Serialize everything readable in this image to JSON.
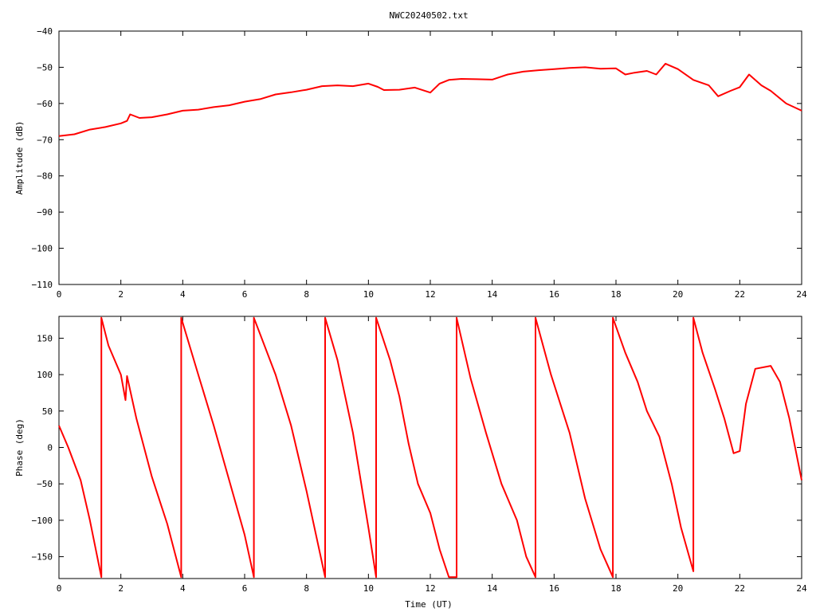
{
  "title": "NWC20240502.txt",
  "colors": {
    "series": "#ff0000",
    "frame": "#000000",
    "background": "#ffffff"
  },
  "chart_data": [
    {
      "type": "line",
      "title": "NWC20240502.txt",
      "xlabel": "",
      "ylabel": "Amplitude (dB)",
      "xlim": [
        0,
        24
      ],
      "ylim": [
        -110,
        -40
      ],
      "xticks": [
        0,
        2,
        4,
        6,
        8,
        10,
        12,
        14,
        16,
        18,
        20,
        22,
        24
      ],
      "yticks": [
        -40,
        -50,
        -60,
        -70,
        -80,
        -90,
        -100,
        -110
      ],
      "grid": false,
      "series": [
        {
          "x": [
            0,
            0.5,
            1,
            1.5,
            2,
            2.2,
            2.3,
            2.6,
            3,
            3.5,
            4,
            4.5,
            5,
            5.5,
            6,
            6.5,
            7,
            7.5,
            8,
            8.5,
            9,
            9.5,
            10,
            10.3,
            10.5,
            11,
            11.5,
            12,
            12.3,
            12.6,
            13,
            13.5,
            14,
            14.5,
            15,
            15.5,
            16,
            16.5,
            17,
            17.5,
            18,
            18.3,
            18.6,
            19,
            19.3,
            19.6,
            20,
            20.5,
            21,
            21.3,
            21.7,
            22,
            22.3,
            22.7,
            23,
            23.5,
            24
          ],
          "values": [
            -69,
            -68.5,
            -67.2,
            -66.5,
            -65.5,
            -64.8,
            -63,
            -64,
            -63.8,
            -63,
            -62,
            -61.7,
            -61,
            -60.5,
            -59.5,
            -58.8,
            -57.5,
            -56.9,
            -56.2,
            -55.2,
            -55,
            -55.2,
            -54.5,
            -55.4,
            -56.3,
            -56.2,
            -55.6,
            -57,
            -54.5,
            -53.5,
            -53.2,
            -53.3,
            -53.4,
            -52,
            -51.2,
            -50.8,
            -50.5,
            -50.2,
            -50,
            -50.4,
            -50.3,
            -52,
            -51.5,
            -51,
            -52,
            -49,
            -50.5,
            -53.5,
            -55,
            -58,
            -56.5,
            -55.5,
            -52,
            -55,
            -56.5,
            -60,
            -62
          ]
        }
      ]
    },
    {
      "type": "line",
      "title": "",
      "xlabel": "Time (UT)",
      "ylabel": "Phase (deg)",
      "xlim": [
        0,
        24
      ],
      "ylim": [
        -180,
        180
      ],
      "xticks": [
        0,
        2,
        4,
        6,
        8,
        10,
        12,
        14,
        16,
        18,
        20,
        22,
        24
      ],
      "yticks": [
        150,
        100,
        50,
        0,
        -50,
        -100,
        -150
      ],
      "grid": false,
      "series": [
        {
          "x": [
            0,
            0.3,
            0.7,
            1,
            1.37,
            1.37,
            1.6,
            2,
            2.15,
            2.2,
            2.5,
            3,
            3.5,
            3.95,
            3.95,
            4.5,
            5,
            5.5,
            6,
            6.3,
            6.3,
            7,
            7.5,
            8,
            8.6,
            8.6,
            9,
            9.5,
            10,
            10.25,
            10.25,
            10.7,
            11,
            11.3,
            11.6,
            12,
            12.3,
            12.6,
            12.85,
            12.85,
            13.3,
            13.8,
            14.3,
            14.8,
            15.1,
            15.4,
            15.4,
            15.9,
            16.5,
            17,
            17.5,
            17.9,
            17.9,
            18.3,
            18.7,
            19,
            19.4,
            19.8,
            20.1,
            20.5,
            20.5,
            20.8,
            21.2,
            21.5,
            21.8,
            22,
            22.2,
            22.5,
            23,
            23.3,
            23.6,
            24
          ],
          "values": [
            30,
            0,
            -45,
            -100,
            -178,
            178,
            140,
            100,
            65,
            98,
            40,
            -40,
            -105,
            -178,
            178,
            100,
            30,
            -45,
            -120,
            -178,
            178,
            100,
            30,
            -60,
            -178,
            178,
            120,
            20,
            -110,
            -178,
            178,
            120,
            70,
            5,
            -50,
            -90,
            -140,
            -178,
            -178,
            178,
            95,
            20,
            -50,
            -100,
            -150,
            -178,
            178,
            100,
            20,
            -70,
            -140,
            -178,
            178,
            130,
            90,
            50,
            15,
            -50,
            -110,
            -170,
            178,
            130,
            80,
            40,
            -8,
            -5,
            60,
            108,
            112,
            90,
            40,
            -45
          ]
        }
      ]
    }
  ]
}
